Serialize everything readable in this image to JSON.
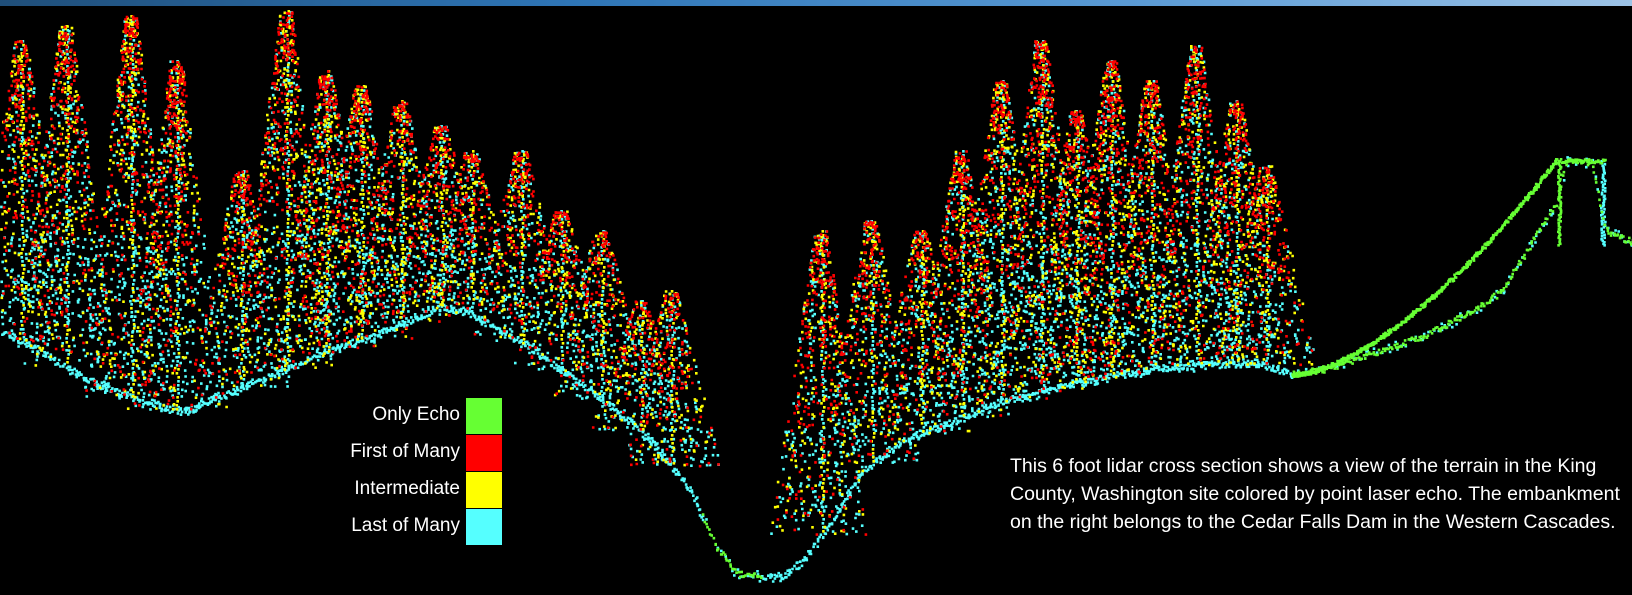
{
  "legend": {
    "items": [
      {
        "label": "Only Echo",
        "color": "#66ff33"
      },
      {
        "label": "First of Many",
        "color": "#ff0000"
      },
      {
        "label": "Intermediate",
        "color": "#ffff00"
      },
      {
        "label": "Last of Many",
        "color": "#55ffff"
      }
    ]
  },
  "caption": "This 6 foot lidar cross section shows a view of the terrain in the King County, Washington site colored by point laser echo. The embankment on the right belongs to the Cedar Falls Dam in the Western Cascades.",
  "colors": {
    "background": "#000000",
    "only_echo": "#66ff33",
    "first_of_many": "#ff0000",
    "intermediate": "#ffff00",
    "last_of_many": "#55ffff",
    "banner_gradient": [
      "#1f4e79",
      "#9dc3e6"
    ]
  }
}
